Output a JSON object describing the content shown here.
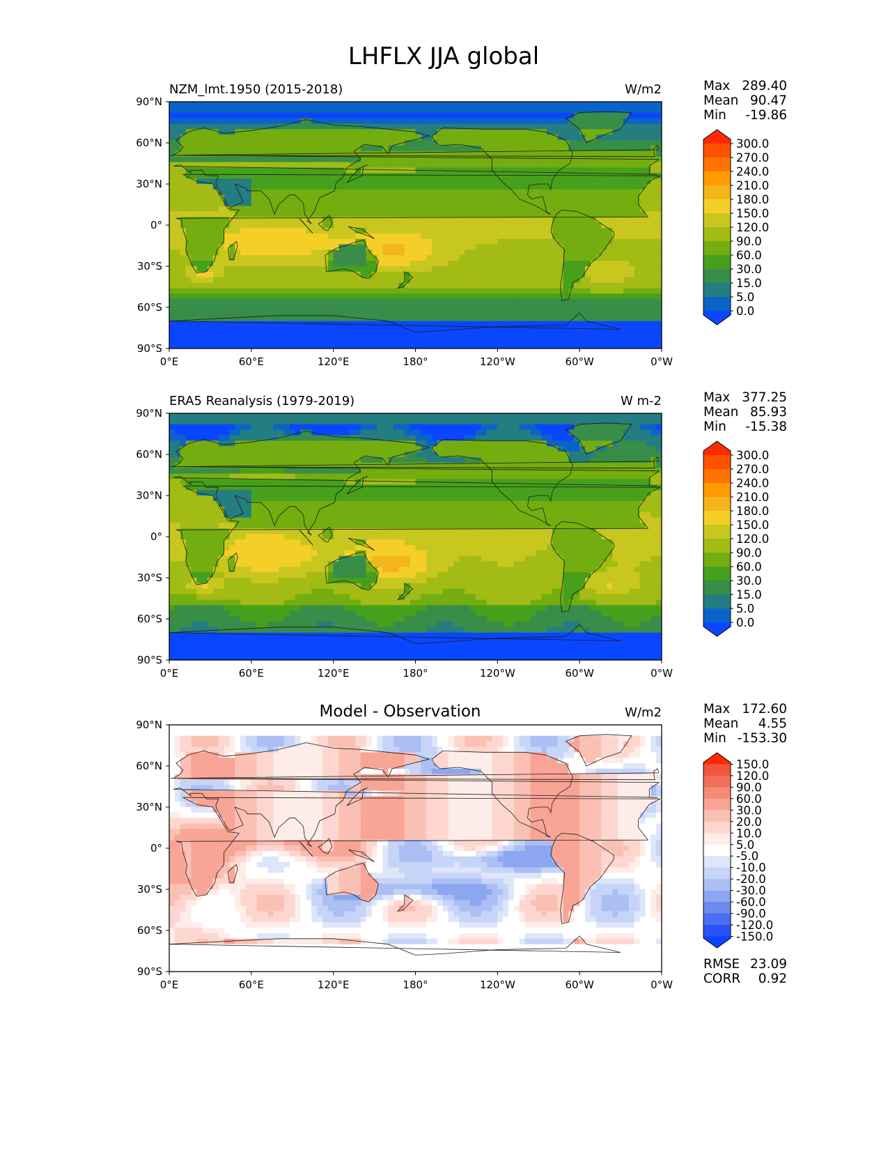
{
  "figure_title": "LHFLX JJA global",
  "colors": {
    "land_outline": "#1a1a1a",
    "frame": "#000000"
  },
  "chart_data": [
    {
      "type": "heatmap",
      "title": "NZM_lmt.1950 (2015-2018)",
      "units": "W/m2",
      "x_ticks": [
        "0°E",
        "60°E",
        "120°E",
        "180°",
        "120°W",
        "60°W",
        "0°W"
      ],
      "y_ticks": [
        "90°N",
        "60°N",
        "30°N",
        "0°",
        "30°S",
        "60°S",
        "90°S"
      ],
      "xlim": [
        0,
        360
      ],
      "ylim": [
        -90,
        90
      ],
      "stats": [
        {
          "label": "Max",
          "value": "289.40"
        },
        {
          "label": "Mean",
          "value": "90.47"
        },
        {
          "label": "Min",
          "value": "-19.86"
        }
      ],
      "colorbar": {
        "extend": "both",
        "tick_labels": [
          "300.0",
          "270.0",
          "240.0",
          "210.0",
          "180.0",
          "150.0",
          "120.0",
          "90.0",
          "60.0",
          "30.0",
          "15.0",
          "5.0",
          "0.0"
        ],
        "colors": [
          "#ff2a00",
          "#ff5200",
          "#ff7300",
          "#ff9a00",
          "#f4b41c",
          "#f3cf28",
          "#c8c71f",
          "#a3bb15",
          "#74ad0f",
          "#47a01c",
          "#388d48",
          "#247d80",
          "#0a64c8",
          "#0a46ff"
        ]
      },
      "field": "lhflx_model",
      "stats_note": ""
    },
    {
      "type": "heatmap",
      "title": "ERA5 Reanalysis (1979-2019)",
      "units": "W m-2",
      "x_ticks": [
        "0°E",
        "60°E",
        "120°E",
        "180°",
        "120°W",
        "60°W",
        "0°W"
      ],
      "y_ticks": [
        "90°N",
        "60°N",
        "30°N",
        "0°",
        "30°S",
        "60°S",
        "90°S"
      ],
      "xlim": [
        0,
        360
      ],
      "ylim": [
        -90,
        90
      ],
      "stats": [
        {
          "label": "Max",
          "value": "377.25"
        },
        {
          "label": "Mean",
          "value": "85.93"
        },
        {
          "label": "Min",
          "value": "-15.38"
        }
      ],
      "colorbar": {
        "extend": "both",
        "tick_labels": [
          "300.0",
          "270.0",
          "240.0",
          "210.0",
          "180.0",
          "150.0",
          "120.0",
          "90.0",
          "60.0",
          "30.0",
          "15.0",
          "5.0",
          "0.0"
        ],
        "colors": [
          "#ff2a00",
          "#ff5200",
          "#ff7300",
          "#ff9a00",
          "#f4b41c",
          "#f3cf28",
          "#c8c71f",
          "#a3bb15",
          "#74ad0f",
          "#47a01c",
          "#388d48",
          "#247d80",
          "#0a64c8",
          "#0a46ff"
        ]
      },
      "field": "lhflx_obs"
    },
    {
      "type": "heatmap",
      "title": "Model - Observation",
      "units": "W/m2",
      "x_ticks": [
        "0°E",
        "60°E",
        "120°E",
        "180°",
        "120°W",
        "60°W",
        "0°W"
      ],
      "y_ticks": [
        "90°N",
        "60°N",
        "30°N",
        "0°",
        "30°S",
        "60°S",
        "90°S"
      ],
      "xlim": [
        0,
        360
      ],
      "ylim": [
        -90,
        90
      ],
      "stats": [
        {
          "label": "Max",
          "value": "172.60"
        },
        {
          "label": "Mean",
          "value": "4.55"
        },
        {
          "label": "Min",
          "value": "-153.30"
        }
      ],
      "bottom_stats": [
        {
          "label": "RMSE",
          "value": "23.09"
        },
        {
          "label": "CORR",
          "value": "0.92"
        }
      ],
      "colorbar": {
        "extend": "both",
        "tick_labels": [
          "150.0",
          "120.0",
          "90.0",
          "60.0",
          "30.0",
          "20.0",
          "10.0",
          "5.0",
          "-5.0",
          "-10.0",
          "-20.0",
          "-30.0",
          "-60.0",
          "-90.0",
          "-120.0",
          "-150.0"
        ],
        "colors": [
          "#ff2a00",
          "#f2553e",
          "#f0705a",
          "#f58a78",
          "#f8a596",
          "#fbc0b4",
          "#fdd7cf",
          "#fdece8",
          "#ffffff",
          "#dee6fb",
          "#c6d4f8",
          "#abbff4",
          "#8ca7f0",
          "#6c8bee",
          "#4a6ef2",
          "#2a52f8",
          "#0a46ff"
        ]
      },
      "field": "lhflx_diff"
    }
  ]
}
